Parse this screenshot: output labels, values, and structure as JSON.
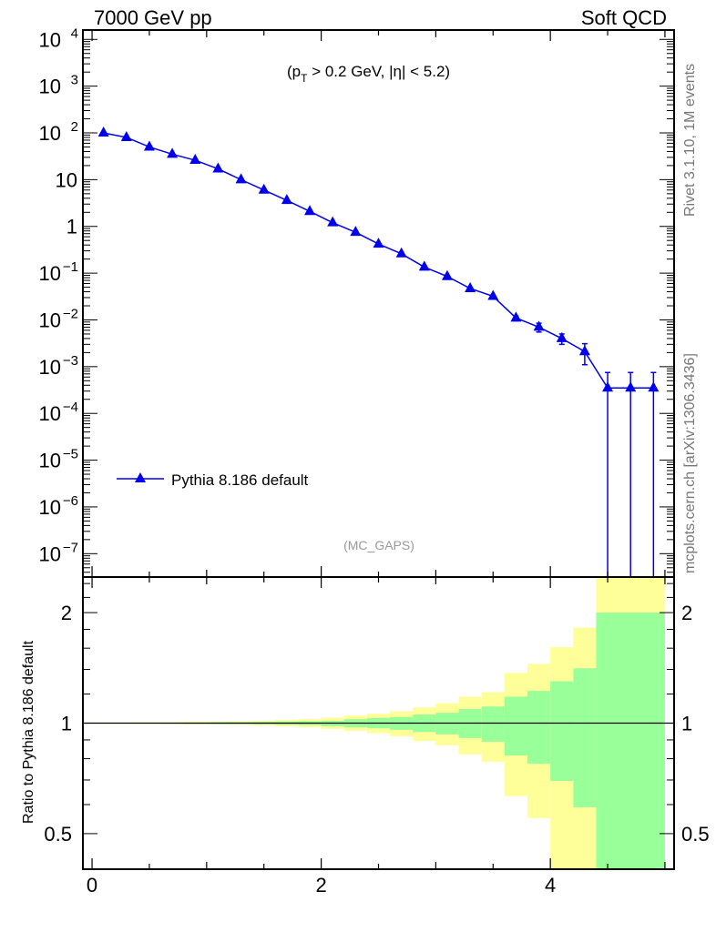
{
  "chart_data": [
    {
      "type": "line",
      "title_left": "7000 GeV pp",
      "title_right": "Soft QCD",
      "annotation": {
        "pre": "(p",
        "sub": "T",
        "post": " > 0.2 GeV, |η| < 5.2)"
      },
      "analysis_label": "(MC_GAPS)",
      "side_label_top": "Rivet 3.1.10,  1M events",
      "side_label_bottom": "mcplots.cern.ch [arXiv:1306.3436]",
      "yscale": "log",
      "xlim": [
        -0.08,
        5.08
      ],
      "ylim_log10": [
        -7.5,
        4.2
      ],
      "legend": {
        "label": "Pythia 8.186 default",
        "placement": "middle-left"
      },
      "yticks": [
        {
          "exp": 4,
          "label": "10",
          "sup": "4"
        },
        {
          "exp": 3,
          "label": "10",
          "sup": "3"
        },
        {
          "exp": 2,
          "label": "10",
          "sup": "2"
        },
        {
          "exp": 1,
          "label": "10",
          "sup": ""
        },
        {
          "exp": 0,
          "label": "1",
          "sup": ""
        },
        {
          "exp": -1,
          "label": "10",
          "sup": "−1"
        },
        {
          "exp": -2,
          "label": "10",
          "sup": "−2"
        },
        {
          "exp": -3,
          "label": "10",
          "sup": "−3"
        },
        {
          "exp": -4,
          "label": "10",
          "sup": "−4"
        },
        {
          "exp": -5,
          "label": "10",
          "sup": "−5"
        },
        {
          "exp": -6,
          "label": "10",
          "sup": "−6"
        },
        {
          "exp": -7,
          "label": "10",
          "sup": "−7"
        }
      ],
      "series": [
        {
          "name": "Pythia 8.186 default",
          "color": "#0000ee",
          "x": [
            0.1,
            0.3,
            0.5,
            0.7,
            0.9,
            1.1,
            1.3,
            1.5,
            1.7,
            1.9,
            2.1,
            2.3,
            2.5,
            2.7,
            2.9,
            3.1,
            3.3,
            3.5,
            3.7,
            3.9,
            4.1,
            4.3,
            4.5,
            4.7,
            4.9
          ],
          "y": [
            100,
            80,
            50,
            35,
            26,
            17,
            10,
            6,
            3.6,
            2.1,
            1.2,
            0.75,
            0.42,
            0.26,
            0.135,
            0.085,
            0.047,
            0.032,
            0.011,
            0.007,
            0.004,
            0.0021,
            0.00035,
            0.00035,
            0.00035
          ],
          "yerr": [
            0,
            0,
            0,
            0,
            0,
            0,
            0,
            0,
            0,
            0,
            0,
            0,
            0,
            0,
            0,
            0,
            0,
            0,
            0.001,
            0.0015,
            0.001,
            0.001,
            0.0004,
            0.0004,
            0.0004
          ]
        }
      ]
    },
    {
      "type": "area",
      "ylabel": "Ratio to Pythia 8.186 default",
      "yscale": "log",
      "ylim": [
        0.4,
        2.5
      ],
      "yticks": [
        0.5,
        1,
        2
      ],
      "ytick_labels": [
        "0.5",
        "1",
        "2"
      ],
      "xticks": [
        0,
        2,
        4
      ],
      "xtick_labels": [
        "0",
        "2",
        "4"
      ],
      "bin_edges": [
        0,
        0.2,
        0.4,
        0.6,
        0.8,
        1.0,
        1.2,
        1.4,
        1.6,
        1.8,
        2.0,
        2.2,
        2.4,
        2.6,
        2.8,
        3.0,
        3.2,
        3.4,
        3.6,
        3.8,
        4.0,
        4.2,
        4.4,
        5.0
      ],
      "green_color": "#99ff99",
      "yellow_color": "#ffff99",
      "green_up": [
        1.002,
        1.002,
        1.003,
        1.003,
        1.004,
        1.005,
        1.006,
        1.007,
        1.01,
        1.012,
        1.015,
        1.025,
        1.033,
        1.039,
        1.055,
        1.067,
        1.092,
        1.11,
        1.18,
        1.224,
        1.3,
        1.41,
        2.0
      ],
      "green_lo": [
        0.998,
        0.998,
        0.997,
        0.997,
        0.996,
        0.995,
        0.994,
        0.993,
        0.99,
        0.988,
        0.981,
        0.974,
        0.968,
        0.959,
        0.946,
        0.932,
        0.911,
        0.89,
        0.816,
        0.775,
        0.696,
        0.59,
        0.3
      ],
      "yellow_up": [
        1.004,
        1.004,
        1.005,
        1.006,
        1.008,
        1.009,
        1.011,
        1.014,
        1.02,
        1.025,
        1.035,
        1.049,
        1.061,
        1.077,
        1.104,
        1.132,
        1.18,
        1.214,
        1.37,
        1.45,
        1.61,
        1.82,
        3.0
      ],
      "yellow_lo": [
        0.996,
        0.996,
        0.995,
        0.994,
        0.992,
        0.991,
        0.989,
        0.986,
        0.98,
        0.975,
        0.964,
        0.953,
        0.939,
        0.921,
        0.894,
        0.87,
        0.822,
        0.785,
        0.633,
        0.551,
        0.3,
        0.3,
        0.3
      ],
      "reference_line": 1
    }
  ]
}
